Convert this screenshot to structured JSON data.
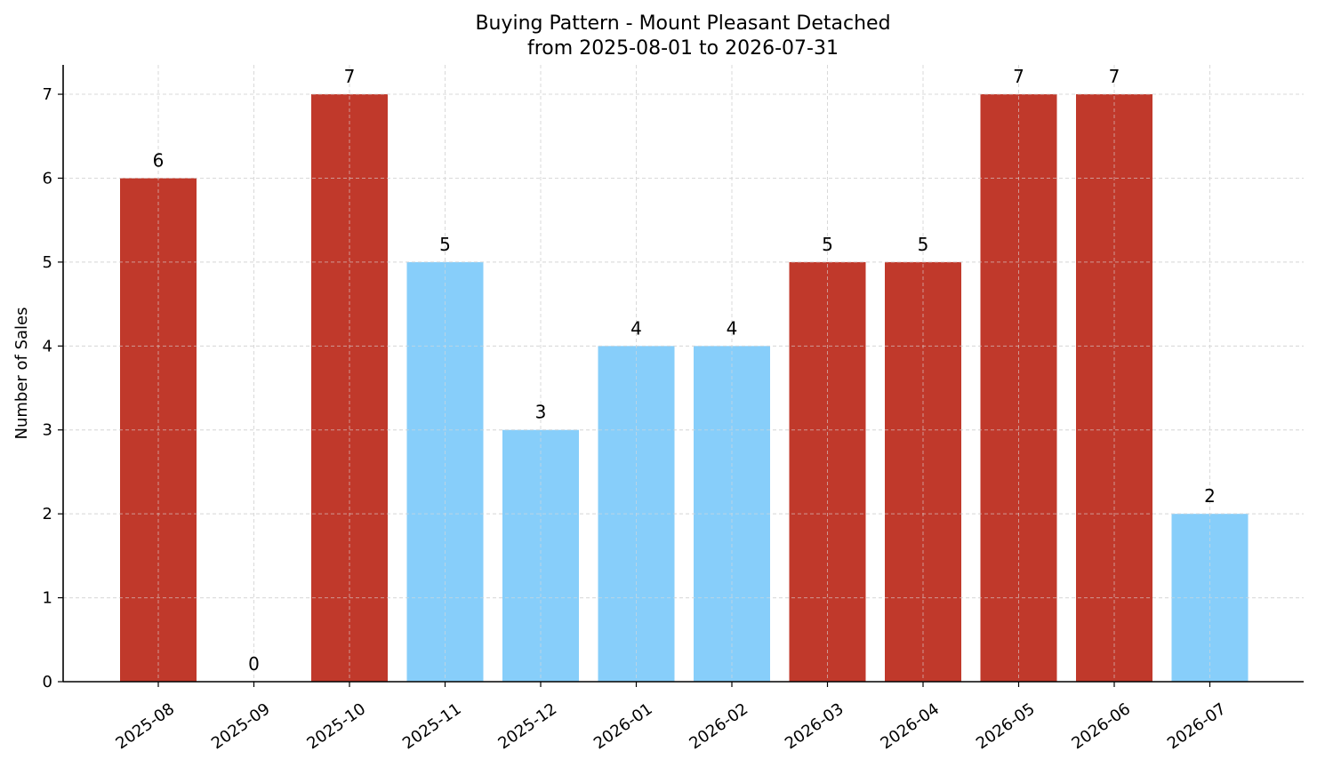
{
  "chart_data": {
    "type": "bar",
    "title": "Buying Pattern - Mount Pleasant Detached",
    "subtitle": "from 2025-08-01 to 2026-07-31",
    "xlabel": "",
    "ylabel": "Number of Sales",
    "categories": [
      "2025-08",
      "2025-09",
      "2025-10",
      "2025-11",
      "2025-12",
      "2026-01",
      "2026-02",
      "2026-03",
      "2026-04",
      "2026-05",
      "2026-06",
      "2026-07"
    ],
    "values": [
      6,
      0,
      7,
      5,
      3,
      4,
      4,
      5,
      5,
      7,
      7,
      2
    ],
    "value_labels": [
      "6",
      "0",
      "7",
      "5",
      "3",
      "4",
      "4",
      "5",
      "5",
      "7",
      "7",
      "2"
    ],
    "bar_colors": [
      "#c0392b",
      "#c0392b",
      "#c0392b",
      "#87cefa",
      "#87cefa",
      "#87cefa",
      "#87cefa",
      "#c0392b",
      "#c0392b",
      "#c0392b",
      "#c0392b",
      "#87cefa"
    ],
    "ylim": [
      0,
      7.35
    ],
    "yticks": [
      0,
      1,
      2,
      3,
      4,
      5,
      6,
      7
    ],
    "grid": true,
    "legend": "none",
    "colors": {
      "high": "#c0392b",
      "low": "#87cefa",
      "grid": "#d9d9d9",
      "axis": "#000000"
    }
  }
}
